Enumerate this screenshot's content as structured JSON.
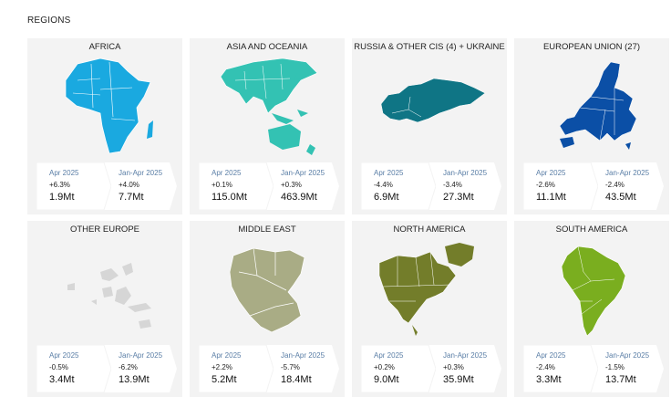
{
  "section_title": "REGIONS",
  "regions": [
    {
      "name": "AFRICA",
      "color": "#1aa9e0",
      "p1": "Apr 2025",
      "c1": "+6.3%",
      "v1": "1.9Mt",
      "p2": "Jan-Apr 2025",
      "c2": "+4.0%",
      "v2": "7.7Mt"
    },
    {
      "name": "ASIA AND OCEANIA",
      "color": "#33c2b3",
      "p1": "Apr 2025",
      "c1": "+0.1%",
      "v1": "115.0Mt",
      "p2": "Jan-Apr 2025",
      "c2": "+0.3%",
      "v2": "463.9Mt"
    },
    {
      "name": "RUSSIA & OTHER CIS (4) + UKRAINE",
      "color": "#0f7585",
      "p1": "Apr 2025",
      "c1": "-4.4%",
      "v1": "6.9Mt",
      "p2": "Jan-Apr 2025",
      "c2": "-3.4%",
      "v2": "27.3Mt"
    },
    {
      "name": "EUROPEAN UNION (27)",
      "color": "#0b4fa6",
      "p1": "Apr 2025",
      "c1": "-2.6%",
      "v1": "11.1Mt",
      "p2": "Jan-Apr 2025",
      "c2": "-2.4%",
      "v2": "43.5Mt"
    },
    {
      "name": "OTHER EUROPE",
      "color": "#d6d6d6",
      "p1": "Apr 2025",
      "c1": "-0.5%",
      "v1": "3.4Mt",
      "p2": "Jan-Apr 2025",
      "c2": "-6.2%",
      "v2": "13.9Mt"
    },
    {
      "name": "MIDDLE EAST",
      "color": "#a9ac85",
      "p1": "Apr 2025",
      "c1": "+2.2%",
      "v1": "5.2Mt",
      "p2": "Jan-Apr 2025",
      "c2": "-5.7%",
      "v2": "18.4Mt"
    },
    {
      "name": "NORTH AMERICA",
      "color": "#737d2a",
      "p1": "Apr 2025",
      "c1": "+0.2%",
      "v1": "9.0Mt",
      "p2": "Jan-Apr 2025",
      "c2": "+0.3%",
      "v2": "35.9Mt"
    },
    {
      "name": "SOUTH AMERICA",
      "color": "#7aae1f",
      "p1": "Apr 2025",
      "c1": "-2.4%",
      "v1": "3.3Mt",
      "p2": "Jan-Apr 2025",
      "c2": "-1.5%",
      "v2": "13.7Mt"
    }
  ]
}
